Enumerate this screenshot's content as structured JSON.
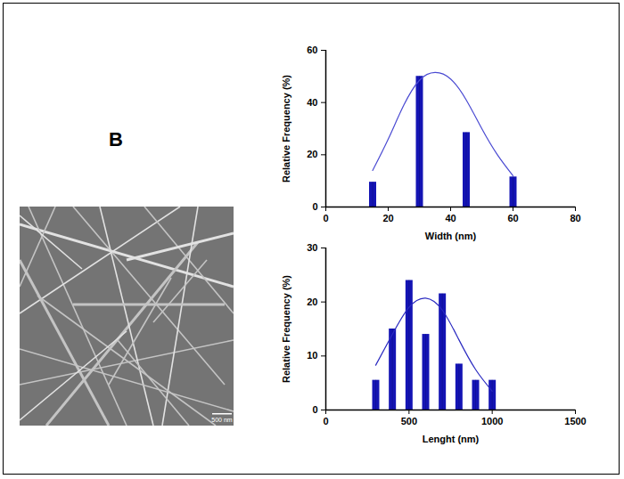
{
  "panel_label": "B",
  "image": {
    "scale_bar": "500 nm"
  },
  "chart_data": [
    {
      "type": "bar",
      "x_label": "Width (nm)",
      "y_label": "Relative Frequency (%)",
      "xlim": [
        0,
        80
      ],
      "xticks": [
        0,
        20,
        40,
        60,
        80
      ],
      "ylim": [
        0,
        60
      ],
      "yticks": [
        0,
        20,
        40,
        60
      ],
      "series": [
        {
          "type": "bar",
          "color": "#1414b4",
          "x": [
            15,
            30,
            45,
            60
          ],
          "values": [
            9.5,
            50,
            28.5,
            11.5
          ]
        },
        {
          "type": "line",
          "color": "#4a4ad2",
          "x": [
            15,
            20,
            25,
            30,
            35,
            40,
            45,
            50,
            55,
            60
          ],
          "values": [
            14,
            26,
            39,
            48.5,
            51.5,
            49,
            41,
            30,
            20,
            12
          ]
        }
      ]
    },
    {
      "type": "bar",
      "x_label": "Lenght (nm)",
      "y_label": "Relative Frequency (%)",
      "xlim": [
        0,
        1500
      ],
      "xticks": [
        0,
        500,
        1000,
        1500
      ],
      "ylim": [
        0,
        30
      ],
      "yticks": [
        0,
        10,
        20,
        30
      ],
      "series": [
        {
          "type": "bar",
          "color": "#1414b4",
          "x": [
            300,
            400,
            500,
            600,
            700,
            800,
            900,
            1000
          ],
          "values": [
            5.5,
            15,
            24,
            14,
            21.5,
            8.5,
            5.5,
            5.5
          ]
        },
        {
          "type": "line",
          "color": "#2a2ac0",
          "x": [
            300,
            400,
            500,
            600,
            700,
            800,
            900,
            1000
          ],
          "values": [
            8.3,
            14,
            19,
            20.7,
            18.5,
            13,
            7.5,
            3.5
          ]
        }
      ]
    }
  ]
}
